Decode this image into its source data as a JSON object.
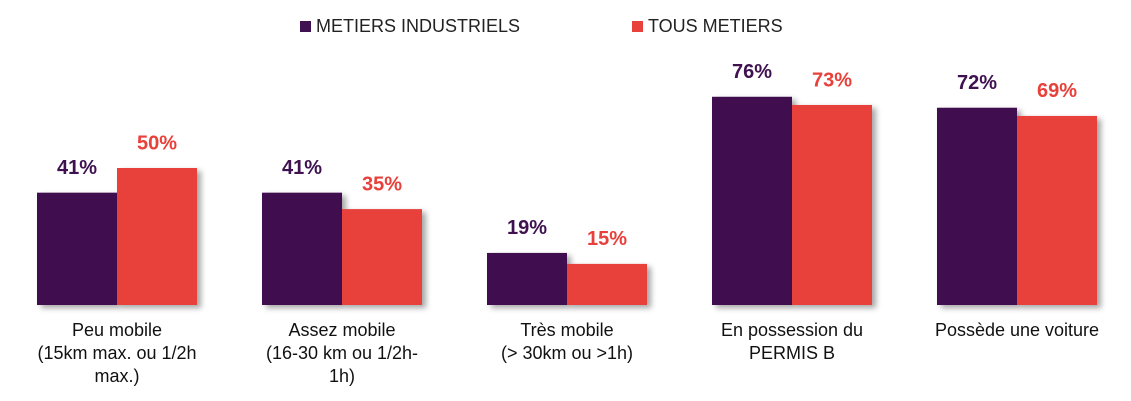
{
  "chart_data": {
    "type": "bar",
    "categories": [
      [
        "Peu mobile",
        "(15km max. ou 1/2h",
        "max.)"
      ],
      [
        "Assez mobile",
        "(16-30 km ou 1/2h-",
        "1h)"
      ],
      [
        "Très mobile",
        "(> 30km ou >1h)"
      ],
      [
        "En possession du",
        "PERMIS B"
      ],
      [
        "Possède une voiture"
      ]
    ],
    "series": [
      {
        "name": "METIERS INDUSTRIELS",
        "color": "#3f1150",
        "values": [
          41,
          41,
          19,
          76,
          72
        ],
        "value_labels": [
          "41%",
          "41%",
          "19%",
          "76%",
          "72%"
        ]
      },
      {
        "name": "TOUS METIERS",
        "color": "#e8403a",
        "values": [
          50,
          35,
          15,
          73,
          69
        ],
        "value_labels": [
          "50%",
          "35%",
          "15%",
          "73%",
          "69%"
        ]
      }
    ],
    "legend": "top"
  }
}
